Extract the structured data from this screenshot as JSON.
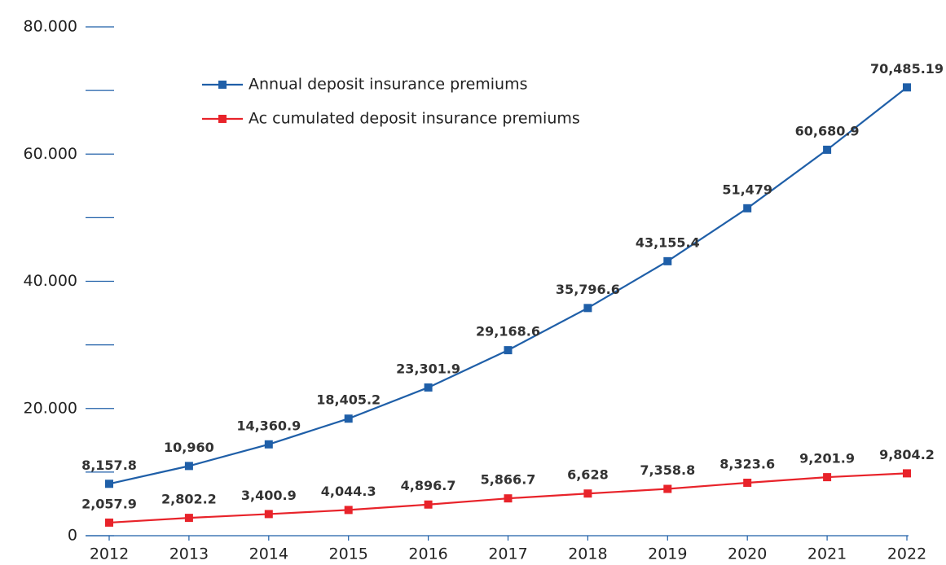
{
  "chart_data": {
    "type": "line",
    "categories": [
      "2012",
      "2013",
      "2014",
      "2015",
      "2016",
      "2017",
      "2018",
      "2019",
      "2020",
      "2021",
      "2022"
    ],
    "series": [
      {
        "name": "Annual deposit insurance premiums",
        "color": "#1f5fa8",
        "values": [
          8157.8,
          10960,
          14360.9,
          18405.2,
          23301.9,
          29168.6,
          35796.6,
          43155.4,
          51479,
          60680.9,
          70485.19
        ],
        "value_labels": [
          "8,157.8",
          "10,960",
          "14,360.9",
          "18,405.2",
          "23,301.9",
          "29,168.6",
          "35,796.6",
          "43,155.4",
          "51,479",
          "60,680.9",
          "70,485.19"
        ]
      },
      {
        "name": "Ac cumulated deposit insurance premiums",
        "color": "#e8232a",
        "values": [
          2057.9,
          2802.2,
          3400.9,
          4044.3,
          4896.7,
          5866.7,
          6628,
          7358.8,
          8323.6,
          9201.9,
          9804.2
        ],
        "value_labels": [
          "2,057.9",
          "2,802.2",
          "3,400.9",
          "4,044.3",
          "4,896.7",
          "5,866.7",
          "6,628",
          "7,358.8",
          "8,323.6",
          "9,201.9",
          "9,804.2"
        ]
      }
    ],
    "ylim": [
      0,
      80000
    ],
    "yticks": [
      0,
      {
        "value": 10000,
        "label": null
      },
      {
        "value": 20000,
        "label": "20.000"
      },
      {
        "value": 30000,
        "label": null
      },
      {
        "value": 40000,
        "label": "40.000"
      },
      {
        "value": 50000,
        "label": null
      },
      {
        "value": 60000,
        "label": "60.000"
      },
      {
        "value": 70000,
        "label": null
      },
      {
        "value": 80000,
        "label": "80.000"
      }
    ]
  }
}
